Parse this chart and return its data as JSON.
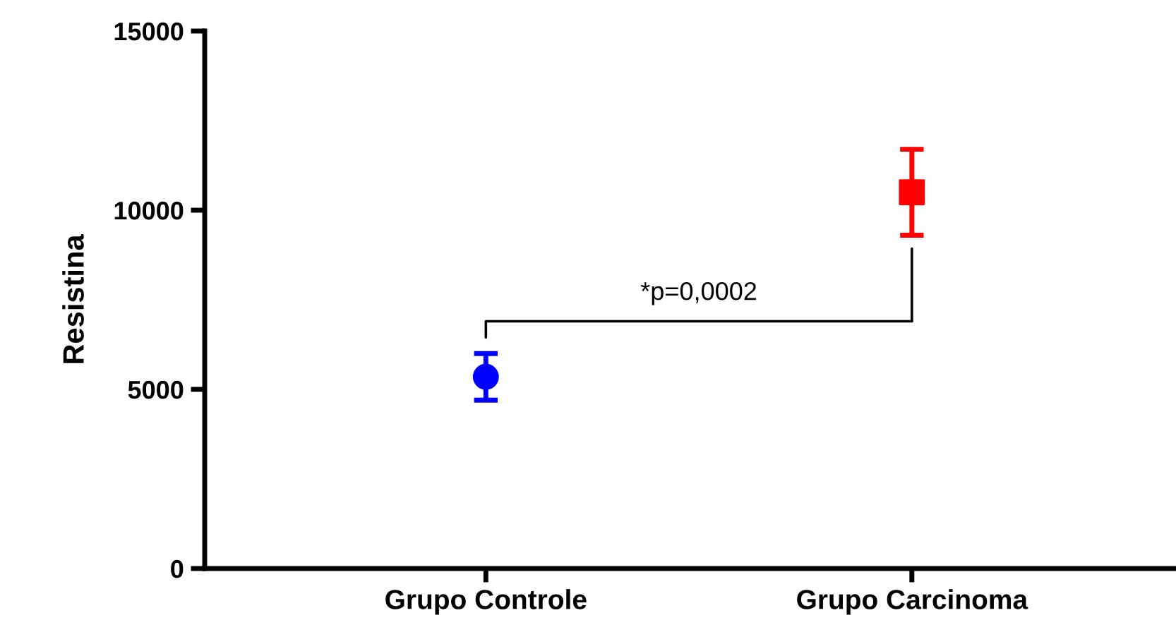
{
  "chart_data": {
    "type": "scatter",
    "ylabel": "Resistina",
    "categories": [
      "Grupo Controle",
      "Grupo Carcinoma"
    ],
    "series": [
      {
        "color": "#0000ff",
        "marker": "circle",
        "values": [
          5350,
          null
        ],
        "errors": [
          [
            4700,
            6000
          ],
          null
        ]
      },
      {
        "color": "#ff0000",
        "marker": "square",
        "values": [
          null,
          10500
        ],
        "errors": [
          null,
          [
            9300,
            11700
          ]
        ]
      }
    ],
    "ylim": [
      0,
      15000
    ],
    "yticks": [
      0,
      5000,
      10000,
      15000
    ],
    "grid": false,
    "legend": false,
    "annotations": [
      "*p=0,0002"
    ]
  }
}
